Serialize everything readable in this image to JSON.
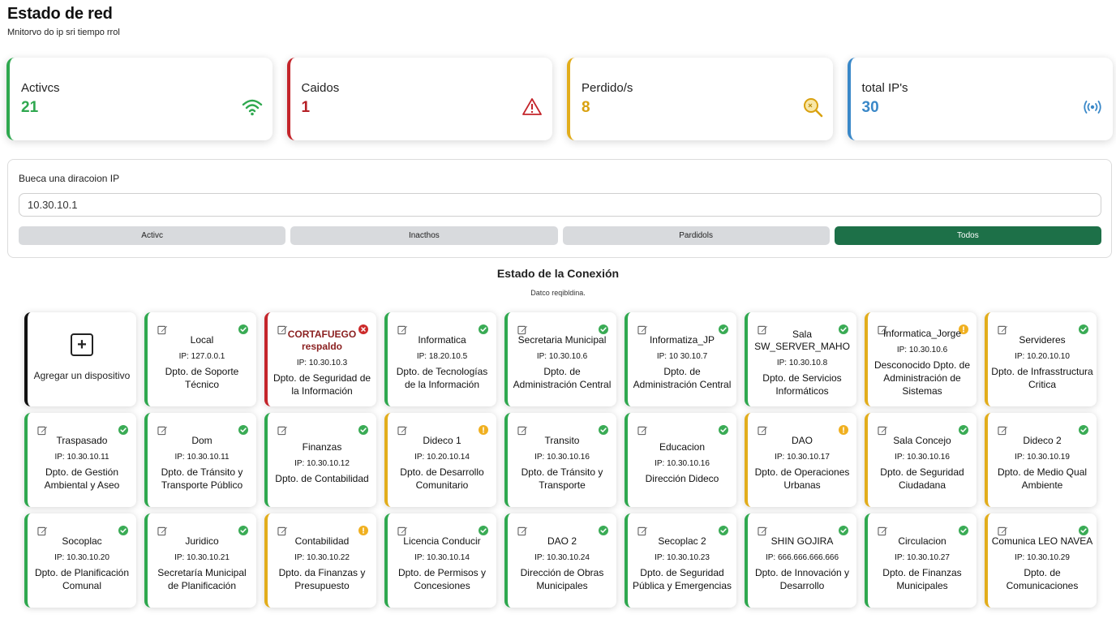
{
  "header": {
    "title": "Estado de red",
    "subtitle": "Mnitorvo do ip sri tiempo rrol"
  },
  "stats": [
    {
      "label": "Activcs",
      "value": "21",
      "color": "#2fa84f",
      "icon": "wifi-icon"
    },
    {
      "label": "Caidos",
      "value": "1",
      "color": "#c4252b",
      "icon": "warning-icon"
    },
    {
      "label": "Perdido/s",
      "value": "8",
      "color": "#e2ad1c",
      "icon": "search-icon"
    },
    {
      "label": "total IP's",
      "value": "30",
      "color": "#3a88c8",
      "icon": "broadcast-icon"
    }
  ],
  "search": {
    "label": "Bueca una diracoion IP",
    "value": "10.30.10.1"
  },
  "filters": [
    {
      "label": "Activc",
      "active": false
    },
    {
      "label": "Inacthos",
      "active": false
    },
    {
      "label": "Pardidols",
      "active": false
    },
    {
      "label": "Todos",
      "active": true
    }
  ],
  "section": {
    "title": "Estado de la Conexión",
    "subtitle": "Datco reqibldina."
  },
  "add_device": {
    "label": "Agregar un dispositivo",
    "icon": "plus-icon"
  },
  "devices": [
    {
      "name": "Local",
      "ip": "IP: 127.0.0.1",
      "dept": "Dpto. de Soporte Técnico",
      "status": "green"
    },
    {
      "name": "CORTAFUEGO respaldo",
      "ip": "IP: 10.30.10.3",
      "dept": "Dpto. de Seguridad de la Información",
      "status": "red"
    },
    {
      "name": "Informatica",
      "ip": "IP: 18.20.10.5",
      "dept": "Dpto. de Tecnologías de la Información",
      "status": "green"
    },
    {
      "name": "Secretaria Municipal",
      "ip": "IP: 10.30.10.6",
      "dept": "Dpto. de Administración Central",
      "status": "green"
    },
    {
      "name": "Informatiza_JP",
      "ip": "IP: 10 30.10.7",
      "dept": "Dpto. de Administración Central",
      "status": "green"
    },
    {
      "name": "Sala SW_SERVER_MAHO",
      "ip": "IP: 10.30.10.8",
      "dept": "Dpto. de Servicios Informáticos",
      "status": "green"
    },
    {
      "name": "Informatica_Jorge",
      "ip": "IP: 10.30.10.6",
      "dept": "Desconocido Dpto. de Administración de Sistemas",
      "status": "yellow"
    },
    {
      "name": "Servideres",
      "ip": "IP: 10.20.10.10",
      "dept": "Dpto. de Infrasstructura Critica",
      "status": "green",
      "border": "yellow"
    },
    {
      "name": "Traspasado",
      "ip": "IP: 10.30.10.11",
      "dept": "Dpto. de Gestión Ambiental y Aseo",
      "status": "green"
    },
    {
      "name": "Dom",
      "ip": "IP: 10.30.10.11",
      "dept": "Dpto. de Tránsito y Transporte Público",
      "status": "green"
    },
    {
      "name": "Finanzas",
      "ip": "IP: 10.30.10.12",
      "dept": "Dpto. de Contabilidad",
      "status": "green"
    },
    {
      "name": "Dideco 1",
      "ip": "IP: 10.20.10.14",
      "dept": "Dpto. de Desarrollo Comunitario",
      "status": "yellow"
    },
    {
      "name": "Transito",
      "ip": "IP: 10.30.10.16",
      "dept": "Dpto. de Tránsito y Transporte",
      "status": "green"
    },
    {
      "name": "Educacion",
      "ip": "IP: 10.30.10.16",
      "dept": "Dirección Dideco",
      "status": "green"
    },
    {
      "name": "DAO",
      "ip": "IP: 10.30.10.17",
      "dept": "Dpto. de Operaciones Urbanas",
      "status": "yellow"
    },
    {
      "name": "Sala Concejo",
      "ip": "IP: 10.30.10.16",
      "dept": "Dpto. de Seguridad Ciudadana",
      "status": "green",
      "border": "yellow"
    },
    {
      "name": "Dideco 2",
      "ip": "IP: 10.30.10.19",
      "dept": "Dpto. de Medio Qual Ambiente",
      "status": "green",
      "border": "yellow"
    },
    {
      "name": "Socoplac",
      "ip": "IP: 10.30.10.20",
      "dept": "Dpto. de Planificación Comunal",
      "status": "green"
    },
    {
      "name": "Juridico",
      "ip": "IP: 10.30.10.21",
      "dept": "Secretaría Municipal de Planificación",
      "status": "green"
    },
    {
      "name": "Contabilidad",
      "ip": "IP: 10.30.10.22",
      "dept": "Dpto. da Finanzas y Presupuesto",
      "status": "yellow"
    },
    {
      "name": "Licencia Conducir",
      "ip": "IP: 10.30.10.14",
      "dept": "Dpto. de Permisos y Concesiones",
      "status": "green"
    },
    {
      "name": "DAO 2",
      "ip": "IP: 10.30.10.24",
      "dept": "Dirección de Obras Municipales",
      "status": "green"
    },
    {
      "name": "Secoplac 2",
      "ip": "IP: 10.30.10.23",
      "dept": "Dpto. de Seguridad Pública y Emergencias",
      "status": "green"
    },
    {
      "name": "SHIN GOJIRA",
      "ip": "IP: 666.666.666.666",
      "dept": "Dpto. de Innovación y Desarrollo",
      "status": "green"
    },
    {
      "name": "Circulacion",
      "ip": "IP: 10.30.10.27",
      "dept": "Dpto. de Finanzas Municipales",
      "status": "green"
    },
    {
      "name": "Comunica LEO NAVEA",
      "ip": "IP: 10.30.10.29",
      "dept": "Dpto. de Comunicaciones",
      "status": "green",
      "border": "yellow"
    }
  ]
}
